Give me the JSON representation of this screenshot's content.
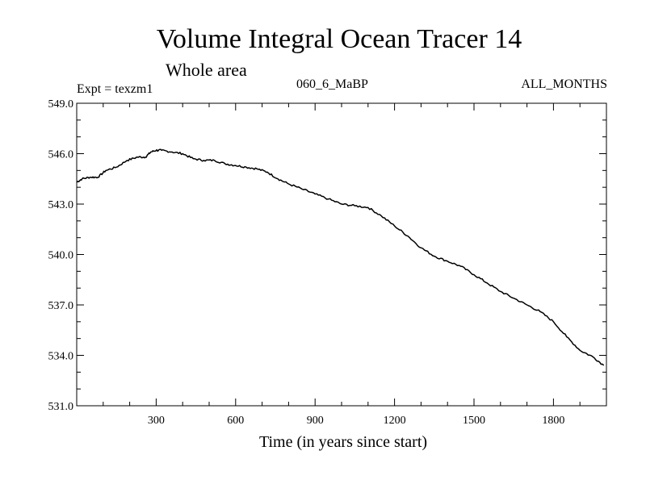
{
  "chart_data": {
    "type": "line",
    "title": "Volume Integral Ocean Tracer 14",
    "subtitle": "Whole area",
    "experiment_label": "Expt = texzm1",
    "period_label": "060_6_MaBP",
    "months_label": "ALL_MONTHS",
    "xlabel": "Time (in years since start)",
    "ylabel": "",
    "xlim": [
      0,
      2000
    ],
    "ylim": [
      531.0,
      549.0
    ],
    "x_ticks": [
      300,
      600,
      900,
      1200,
      1500,
      1800
    ],
    "x_tick_labels": [
      "300",
      "600",
      "900",
      "1200",
      "1500",
      "1800"
    ],
    "y_ticks": [
      531.0,
      534.0,
      537.0,
      540.0,
      543.0,
      546.0,
      549.0
    ],
    "y_tick_labels": [
      "531.0",
      "534.0",
      "537.0",
      "540.0",
      "543.0",
      "546.0",
      "549.0"
    ],
    "grid": false,
    "series": [
      {
        "name": "Tracer 14",
        "color": "#000000",
        "x": [
          0,
          20,
          50,
          80,
          110,
          150,
          190,
          230,
          260,
          280,
          300,
          320,
          360,
          400,
          440,
          480,
          520,
          560,
          600,
          640,
          680,
          720,
          760,
          800,
          850,
          900,
          950,
          1000,
          1050,
          1100,
          1150,
          1200,
          1250,
          1300,
          1350,
          1400,
          1450,
          1500,
          1550,
          1600,
          1650,
          1700,
          1750,
          1800,
          1850,
          1900,
          1950,
          1990
        ],
        "y": [
          544.3,
          544.5,
          544.6,
          544.6,
          545.0,
          545.2,
          545.6,
          545.8,
          545.8,
          546.1,
          546.2,
          546.2,
          546.1,
          546.0,
          545.7,
          545.6,
          545.6,
          545.4,
          545.3,
          545.2,
          545.1,
          544.9,
          544.5,
          544.2,
          543.9,
          543.6,
          543.3,
          543.0,
          542.9,
          542.8,
          542.3,
          541.7,
          541.1,
          540.4,
          539.9,
          539.6,
          539.3,
          538.8,
          538.3,
          537.8,
          537.4,
          537.0,
          536.6,
          536.0,
          535.1,
          534.3,
          533.9,
          533.4
        ]
      }
    ]
  }
}
